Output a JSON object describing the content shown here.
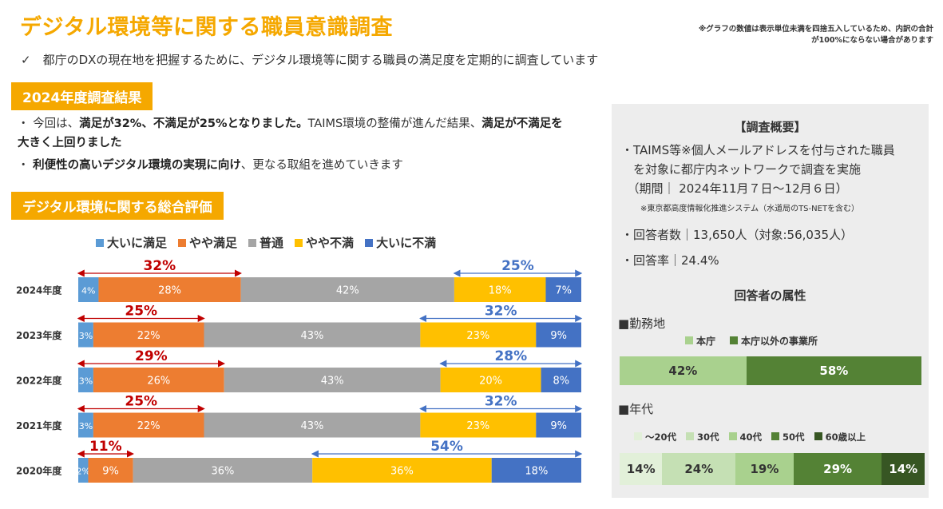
{
  "page": {
    "title": "デジタル環境等に関する職員意識調査",
    "note": "※グラフの数値は表示単位未満を四捨五入しているため、内訳の合計が100%にならない場合があります",
    "intro": "✓　都庁のDXの現在地を把握するために、デジタル環境等に関する職員の満足度を定期的に調査しています"
  },
  "results": {
    "heading": "2024年度調査結果",
    "bullet1_pre": "・ 今回は、",
    "bullet1_bold1": "満足が32%、不満足が25%となりました。",
    "bullet1_mid": "TAIMS環境の整備が進んだ結果、",
    "bullet1_bold2": "満足が不満足を大きく上回りました",
    "bullet2_bold": "利便性の高いデジタル環境の実現に向け",
    "bullet2_rest": "、更なる取組を進めていきます",
    "bullet2_dot": "・ "
  },
  "overall": {
    "heading": "デジタル環境に関する総合評価"
  },
  "chart_data": {
    "type": "bar",
    "orientation": "horizontal-stacked-100",
    "categories": [
      "2024年度",
      "2023年度",
      "2022年度",
      "2021年度",
      "2020年度"
    ],
    "series": [
      {
        "name": "大いに満足",
        "color": "#5B9BD5",
        "values": [
          4,
          3,
          3,
          3,
          2
        ]
      },
      {
        "name": "やや満足",
        "color": "#ED7D31",
        "values": [
          28,
          22,
          26,
          22,
          9
        ]
      },
      {
        "name": "普通",
        "color": "#A5A5A5",
        "values": [
          42,
          43,
          43,
          43,
          36
        ]
      },
      {
        "name": "やや不満",
        "color": "#FFC000",
        "values": [
          18,
          23,
          20,
          23,
          36
        ]
      },
      {
        "name": "大いに不満",
        "color": "#4472C4",
        "values": [
          7,
          9,
          8,
          9,
          18
        ]
      }
    ],
    "satisfied_totals": [
      "32%",
      "25%",
      "29%",
      "25%",
      "11%"
    ],
    "dissatisfied_totals": [
      "25%",
      "32%",
      "28%",
      "32%",
      "54%"
    ],
    "satisfied_color": "#C00000",
    "dissatisfied_color": "#4472C4",
    "legend_position": "top"
  },
  "panel": {
    "title": "【調査概要】",
    "line1": "・TAIMS等※個人メールアドレスを付与された職員",
    "line2": "　を対象に都庁内ネットワークで調査を実施",
    "line3": "　（期間｜ 2024年11月７日～12月６日）",
    "note": "※東京都高度情報化推進システム（水道局のTS-NETを含む）",
    "respondents": "・回答者数｜13,650人（対象:56,035人）",
    "rate": "・回答率｜24.4%",
    "attr_title": "回答者の属性",
    "work_label": "■勤務地",
    "work_legend": [
      {
        "label": "本庁",
        "color": "#A9D18E"
      },
      {
        "label": "本庁以外の事業所",
        "color": "#548235"
      }
    ],
    "work_values": [
      "42%",
      "58%"
    ],
    "work_shares": [
      42,
      58
    ],
    "age_label": "■年代",
    "age_legend": [
      {
        "label": "～20代",
        "color": "#E2F0D9"
      },
      {
        "label": "30代",
        "color": "#C5E0B4"
      },
      {
        "label": "40代",
        "color": "#A9D18E"
      },
      {
        "label": "50代",
        "color": "#548235"
      },
      {
        "label": "60歳以上",
        "color": "#375623"
      }
    ],
    "age_values": [
      "14%",
      "24%",
      "19%",
      "29%",
      "14%"
    ],
    "age_shares": [
      14,
      24,
      19,
      29,
      14
    ]
  }
}
